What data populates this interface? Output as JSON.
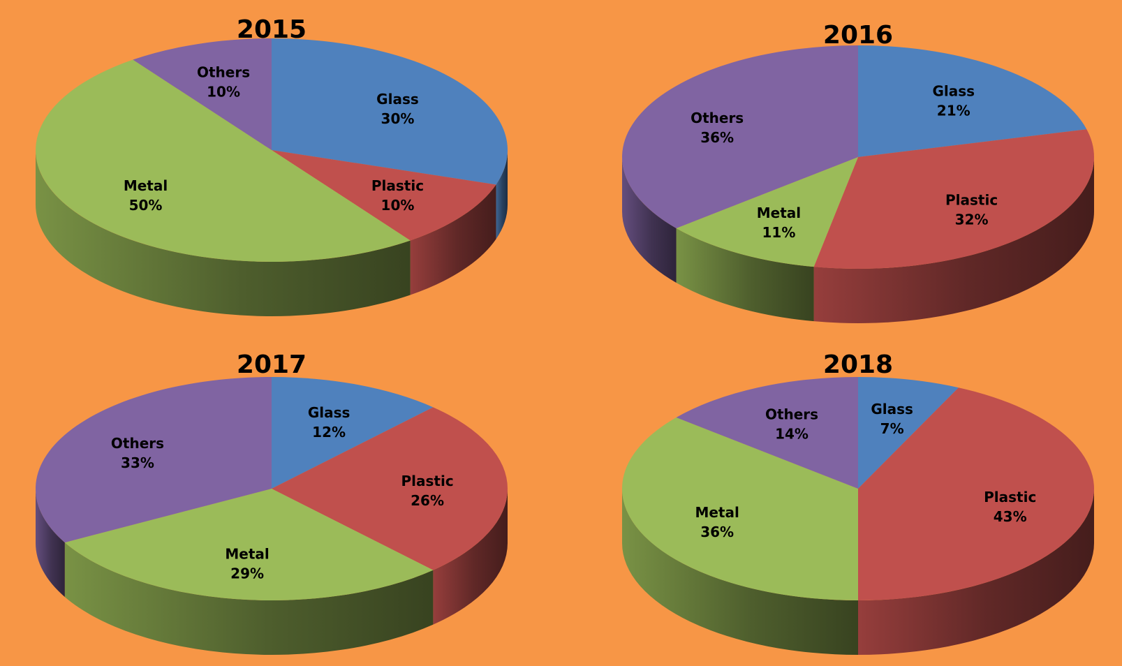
{
  "colors": {
    "background": "#F79646",
    "Glass": "#4F81BD",
    "Plastic": "#C0504D",
    "Metal": "#9BBB59",
    "Others": "#8064A2"
  },
  "chart_data": [
    {
      "type": "pie",
      "title": "2015",
      "categories": [
        "Glass",
        "Plastic",
        "Metal",
        "Others"
      ],
      "values": [
        30,
        10,
        50,
        10
      ],
      "labels": [
        "30%",
        "10%",
        "50%",
        "10%"
      ],
      "style": "3d"
    },
    {
      "type": "pie",
      "title": "2016",
      "categories": [
        "Glass",
        "Plastic",
        "Metal",
        "Others"
      ],
      "values": [
        21,
        32,
        11,
        36
      ],
      "labels": [
        "21%",
        "32%",
        "11%",
        "36%"
      ],
      "style": "3d"
    },
    {
      "type": "pie",
      "title": "2017",
      "categories": [
        "Glass",
        "Plastic",
        "Metal",
        "Others"
      ],
      "values": [
        12,
        26,
        29,
        33
      ],
      "labels": [
        "12%",
        "26%",
        "29%",
        "33%"
      ],
      "style": "3d"
    },
    {
      "type": "pie",
      "title": "2018",
      "categories": [
        "Glass",
        "Plastic",
        "Metal",
        "Others"
      ],
      "values": [
        7,
        43,
        36,
        14
      ],
      "labels": [
        "7%",
        "43%",
        "36%",
        "14%"
      ],
      "style": "3d"
    }
  ]
}
